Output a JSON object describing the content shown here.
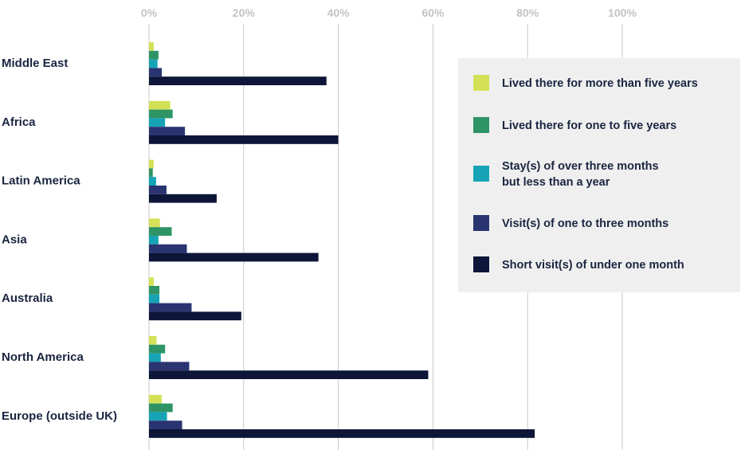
{
  "chart_data": {
    "type": "bar",
    "orientation": "horizontal",
    "categories": [
      "Middle East",
      "Africa",
      "Latin America",
      "Asia",
      "Australia",
      "North America",
      "Europe (outside UK)"
    ],
    "x_ticks": [
      "0%",
      "20%",
      "40%",
      "60%",
      "80%",
      "100%"
    ],
    "xlim": [
      0,
      100
    ],
    "grid": true,
    "legend_position": "right",
    "series": [
      {
        "name": "Lived there for more than five years",
        "label_lines": [
          "Lived there for more than five years"
        ],
        "color": "#d4e157",
        "values": [
          1,
          4.5,
          1,
          2.3,
          1,
          1.6,
          2.7
        ]
      },
      {
        "name": "Lived there for one to five years",
        "label_lines": [
          "Lived there for one to five years"
        ],
        "color": "#2e9466",
        "values": [
          2,
          5,
          0.8,
          4.8,
          2.2,
          3.4,
          5
        ]
      },
      {
        "name": "Stay(s) of over three months but less than a year",
        "label_lines": [
          "Stay(s) of over three months",
          "but less than a year"
        ],
        "color": "#16a3b5",
        "values": [
          1.8,
          3.4,
          1.5,
          2,
          2.2,
          2.5,
          3.8
        ]
      },
      {
        "name": "Visit(s) of one to three months",
        "label_lines": [
          "Visit(s) of one to three months"
        ],
        "color": "#2a3470",
        "values": [
          2.7,
          7.6,
          3.7,
          8,
          9,
          8.5,
          7
        ]
      },
      {
        "name": "Short visit(s) of under one month",
        "label_lines": [
          "Short visit(s) of under one month"
        ],
        "color": "#0d1538",
        "values": [
          37.5,
          40,
          14.3,
          35.8,
          19.5,
          59,
          81.5
        ]
      }
    ]
  }
}
